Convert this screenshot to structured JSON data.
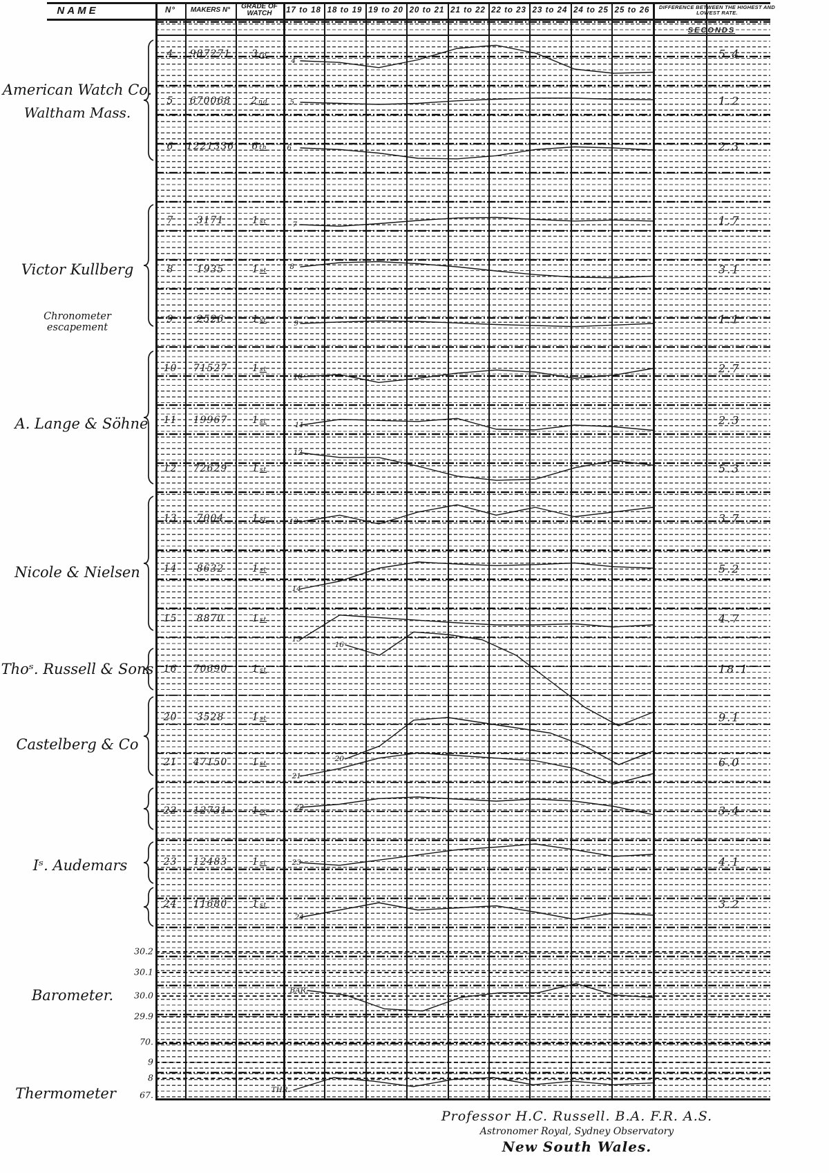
{
  "header": {
    "columns": [
      "NAME",
      "N°",
      "MAKERS N°",
      "GRADE OF WATCH",
      "17 to 18",
      "18 to 19",
      "19 to 20",
      "20 to 21",
      "21 to 22",
      "22 to 23",
      "23 to 24",
      "24 to 25",
      "25 to 26",
      "DIFFERENCE BETWEEN THE HIGHEST AND LOWEST RATE."
    ],
    "seconds_label": "SECONDS"
  },
  "makers": [
    {
      "name": "American Watch Co.",
      "name2": "Waltham Mass.",
      "watch_nos": [
        "4",
        "5",
        "6"
      ]
    },
    {
      "name": "Victor Kullberg",
      "name2": "Chronometer escapement",
      "watch_nos": [
        "7",
        "8",
        "9"
      ]
    },
    {
      "name": "A. Lange & Söhne",
      "watch_nos": [
        "10",
        "11",
        "12"
      ]
    },
    {
      "name": "Nicole & Nielsen",
      "watch_nos": [
        "13",
        "14",
        "15"
      ]
    },
    {
      "name": "Thoˢ. Russell & Sons",
      "watch_nos": [
        "16"
      ]
    },
    {
      "name": "Castelberg & Co",
      "watch_nos": [
        "20",
        "21"
      ]
    },
    {
      "name": "Iˢ. Audemars",
      "watch_nos": [
        "22",
        "23",
        "24"
      ]
    },
    {
      "name": "Barometer."
    },
    {
      "name": "Thermometer"
    }
  ],
  "rows": [
    {
      "no": "4",
      "makers_no": "987271",
      "grade": "3",
      "grade_suffix": "rd",
      "difference_seconds": "5.4"
    },
    {
      "no": "5",
      "makers_no": "670068",
      "grade": "2",
      "grade_suffix": "nd",
      "difference_seconds": "1.2"
    },
    {
      "no": "6",
      "makers_no": "1221336",
      "grade": "6",
      "grade_suffix": "th",
      "difference_seconds": "2.3"
    },
    {
      "no": "7",
      "makers_no": "3171",
      "grade": "1",
      "grade_suffix": "st",
      "difference_seconds": "1.7"
    },
    {
      "no": "8",
      "makers_no": "1935",
      "grade": "1",
      "grade_suffix": "st",
      "difference_seconds": "3.1"
    },
    {
      "no": "9",
      "makers_no": "2526",
      "grade": "1",
      "grade_suffix": "st",
      "difference_seconds": "1.1"
    },
    {
      "no": "10",
      "makers_no": "71527",
      "grade": "1",
      "grade_suffix": "st",
      "difference_seconds": "2.7"
    },
    {
      "no": "11",
      "makers_no": "19967",
      "grade": "1",
      "grade_suffix": "st",
      "difference_seconds": "2.3"
    },
    {
      "no": "12",
      "makers_no": "72629",
      "grade": "1",
      "grade_suffix": "st",
      "difference_seconds": "5.3"
    },
    {
      "no": "13",
      "makers_no": "7004",
      "grade": "1",
      "grade_suffix": "st",
      "difference_seconds": "3.7"
    },
    {
      "no": "14",
      "makers_no": "8632",
      "grade": "1",
      "grade_suffix": "st",
      "difference_seconds": "5.2"
    },
    {
      "no": "15",
      "makers_no": "8870",
      "grade": "1",
      "grade_suffix": "st",
      "difference_seconds": "4.7"
    },
    {
      "no": "16",
      "makers_no": "70690",
      "grade": "1",
      "grade_suffix": "st",
      "difference_seconds": "18.1"
    },
    {
      "no": "20",
      "makers_no": "3528",
      "grade": "1",
      "grade_suffix": "st",
      "difference_seconds": "9.1"
    },
    {
      "no": "21",
      "makers_no": "47150",
      "grade": "1",
      "grade_suffix": "st",
      "difference_seconds": "6.0"
    },
    {
      "no": "22",
      "makers_no": "12731",
      "grade": "1",
      "grade_suffix": "st",
      "difference_seconds": "3.4"
    },
    {
      "no": "23",
      "makers_no": "12483",
      "grade": "1",
      "grade_suffix": "st",
      "difference_seconds": "4.1"
    },
    {
      "no": "24",
      "makers_no": "11680",
      "grade": "1",
      "grade_suffix": "st",
      "difference_seconds": "3.2"
    }
  ],
  "scales": {
    "barometer_label": "Barometer.",
    "barometer_ticks": [
      "30.2",
      "30.1",
      "30.0",
      "29.9"
    ],
    "thermometer_label": "Thermometer",
    "thermometer_ticks": [
      "70.",
      "9",
      "8",
      "67."
    ]
  },
  "footer": {
    "line1": "Professor H.C. Russell. B.A. F.R. A.S.",
    "line2": "Astronomer Royal, Sydney Observatory",
    "line3": "New South Wales."
  },
  "chart_data": {
    "type": "line",
    "x_columns": [
      "17 to 18",
      "18 to 19",
      "19 to 20",
      "20 to 21",
      "21 to 22",
      "22 to 23",
      "23 to 24",
      "24 to 25",
      "25 to 26"
    ],
    "ylabel": "Seconds",
    "grid": "dense dashed horizontal ruling, heavy dash-dot line every 5th rule, solid vertical column dividers",
    "sampling_note": "each trace sampled at 10 evenly spaced points across the nine year-columns; watch values are rate deviations in seconds relative to each trace's first point (estimated from the engraved curves); range of each watch trace equals its printed difference value",
    "series": [
      {
        "label": "4",
        "unit": "s",
        "values": [
          0,
          -0.3,
          -1.3,
          0.2,
          2.4,
          3.0,
          1.5,
          -1.6,
          -2.4,
          -2.2
        ]
      },
      {
        "label": "5",
        "unit": "s",
        "values": [
          0,
          -0.2,
          -0.4,
          -0.2,
          0.3,
          0.6,
          0.8,
          0.8,
          0.6,
          0.5
        ]
      },
      {
        "label": "6",
        "unit": "s",
        "values": [
          0,
          -0.3,
          -1.0,
          -2.0,
          -2.1,
          -1.5,
          -0.3,
          0.2,
          0,
          -0.4
        ]
      },
      {
        "label": "7",
        "unit": "s",
        "values": [
          0,
          -0.3,
          0.2,
          0.8,
          1.3,
          1.4,
          1.0,
          0.7,
          0.9,
          0.7
        ]
      },
      {
        "label": "8",
        "unit": "s",
        "values": [
          0,
          0.8,
          1.0,
          0.6,
          0,
          -0.8,
          -1.5,
          -2.0,
          -2.1,
          -1.8
        ]
      },
      {
        "label": "9",
        "unit": "s",
        "values": [
          0,
          0.3,
          0.5,
          0.4,
          0.1,
          -0.2,
          -0.4,
          -0.6,
          -0.3,
          0
        ]
      },
      {
        "label": "10",
        "unit": "s",
        "values": [
          0,
          0.4,
          -1.1,
          -0.3,
          0.7,
          1.3,
          0.9,
          -0.3,
          0.3,
          1.6
        ]
      },
      {
        "label": "11",
        "unit": "s",
        "values": [
          0,
          1.1,
          0.9,
          0.7,
          1.3,
          -0.8,
          -0.9,
          0,
          -0.3,
          -1.0
        ]
      },
      {
        "label": "12",
        "unit": "s",
        "values": [
          0,
          -0.9,
          -0.9,
          -2.6,
          -4.5,
          -5.3,
          -5.1,
          -2.9,
          -1.5,
          -2.4
        ]
      },
      {
        "label": "13",
        "unit": "s",
        "values": [
          0,
          1.3,
          -0.4,
          1.9,
          3.3,
          1.3,
          2.8,
          1.0,
          1.9,
          2.8
        ]
      },
      {
        "label": "14",
        "unit": "s",
        "values": [
          0,
          1.5,
          4.0,
          5.2,
          4.8,
          4.5,
          4.7,
          5.0,
          4.3,
          4.0
        ]
      },
      {
        "label": "15",
        "unit": "s",
        "values": [
          0,
          4.7,
          4.2,
          3.7,
          3.2,
          2.8,
          2.8,
          3.0,
          2.4,
          2.8
        ]
      },
      {
        "label": "16",
        "unit": "s",
        "values": [
          0,
          -2.0,
          2.5,
          2.0,
          1.0,
          -2.0,
          -7.0,
          -12.0,
          -15.6,
          -13.0
        ]
      },
      {
        "label": "20",
        "unit": "s",
        "values": [
          0,
          2.5,
          7.5,
          8.0,
          7.0,
          6.0,
          5.0,
          2.5,
          -1.1,
          1.5
        ]
      },
      {
        "label": "21",
        "unit": "s",
        "values": [
          0,
          1.5,
          3.5,
          4.5,
          4.0,
          3.5,
          3.0,
          1.5,
          -1.5,
          0.5
        ]
      },
      {
        "label": "22",
        "unit": "s",
        "values": [
          0,
          0.6,
          1.7,
          2.0,
          1.6,
          1.2,
          1.6,
          1.2,
          0.2,
          -1.4
        ]
      },
      {
        "label": "23",
        "unit": "s",
        "values": [
          0,
          -0.5,
          0.5,
          1.5,
          2.5,
          3.0,
          3.6,
          2.5,
          1.2,
          1.6
        ]
      },
      {
        "label": "24",
        "unit": "s",
        "values": [
          0,
          1.4,
          2.8,
          1.4,
          1.8,
          2.2,
          1.0,
          -0.4,
          0.8,
          0.4
        ]
      },
      {
        "label": "BAR.",
        "unit": "inches",
        "values": [
          30.02,
          30.0,
          29.94,
          29.93,
          29.99,
          30.01,
          30.01,
          30.05,
          30.0,
          29.99
        ]
      },
      {
        "label": "THR.",
        "unit": "°F",
        "values": [
          67.3,
          68.0,
          67.8,
          67.5,
          67.9,
          68.0,
          67.6,
          67.8,
          67.6,
          67.7
        ]
      }
    ],
    "ink_color": "#161616"
  }
}
